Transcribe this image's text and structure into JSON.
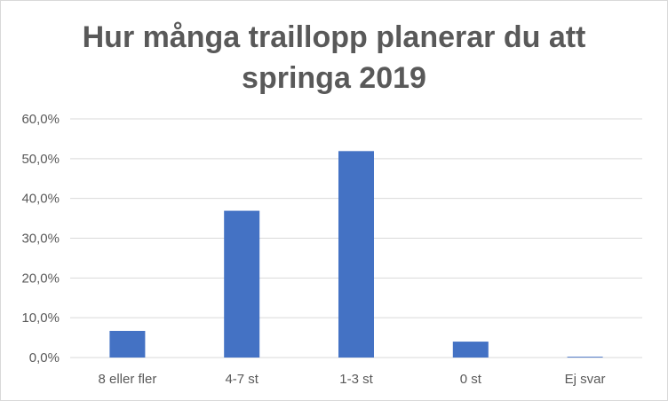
{
  "chart_data": {
    "type": "bar",
    "title_lines": [
      "Hur många traillopp planerar du att",
      "springa 2019"
    ],
    "categories": [
      "8 eller fler",
      "4-7 st",
      "1-3 st",
      "0 st",
      "Ej svar"
    ],
    "values": [
      6.7,
      36.9,
      51.9,
      4.0,
      0.2
    ],
    "yticks": [
      "0,0%",
      "10,0%",
      "20,0%",
      "30,0%",
      "40,0%",
      "50,0%",
      "60,0%"
    ],
    "ylim": [
      0,
      60
    ],
    "grid": true,
    "bar_color": "#4472c4",
    "grid_color": "#d9d9d9"
  }
}
